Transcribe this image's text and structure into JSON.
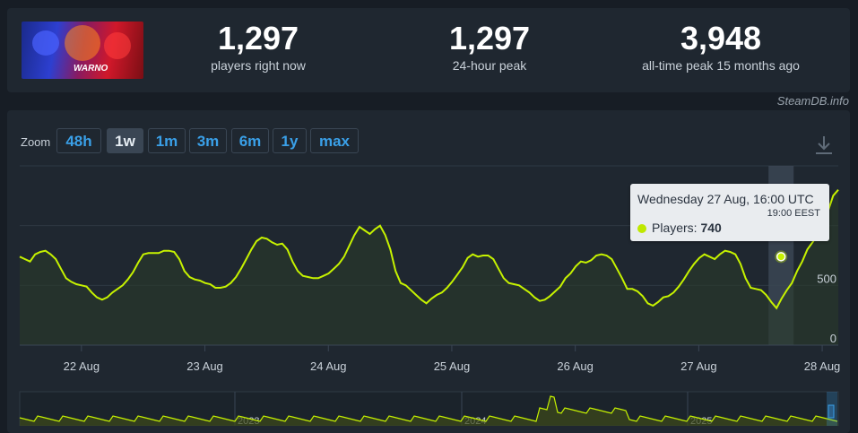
{
  "stats": [
    {
      "value": "1,297",
      "label": "players right now"
    },
    {
      "value": "1,297",
      "label": "24-hour peak"
    },
    {
      "value": "3,948",
      "label": "all-time peak 15 months ago"
    }
  ],
  "game": {
    "logo_text": "WARNO"
  },
  "credit": "SteamDB.info",
  "zoom": {
    "label": "Zoom",
    "options": [
      "48h",
      "1w",
      "1m",
      "3m",
      "6m",
      "1y",
      "max"
    ],
    "selected": "1w"
  },
  "tooltip": {
    "title": "Wednesday 27 Aug, 16:00 UTC",
    "subtitle": "19:00 EEST",
    "series_label": "Players:",
    "value": "740"
  },
  "chart_data": {
    "type": "area",
    "x_tick_labels": [
      "22 Aug",
      "23 Aug",
      "24 Aug",
      "25 Aug",
      "26 Aug",
      "27 Aug",
      "28 Aug"
    ],
    "y_tick_labels": [
      "0",
      "500"
    ],
    "ylim": [
      0,
      1500
    ],
    "grid": true,
    "series": [
      {
        "name": "Players",
        "color": "#c6f200",
        "x_start_day": 21.5,
        "x_step_days": 0.0417,
        "values": [
          740,
          720,
          700,
          760,
          780,
          790,
          760,
          720,
          640,
          560,
          530,
          510,
          500,
          490,
          440,
          400,
          380,
          400,
          440,
          470,
          500,
          550,
          610,
          690,
          760,
          770,
          770,
          770,
          790,
          790,
          780,
          720,
          620,
          570,
          550,
          540,
          520,
          510,
          480,
          480,
          490,
          520,
          570,
          640,
          720,
          800,
          870,
          900,
          890,
          860,
          840,
          850,
          800,
          700,
          620,
          580,
          570,
          560,
          560,
          580,
          600,
          640,
          680,
          740,
          830,
          920,
          990,
          960,
          930,
          970,
          1000,
          920,
          800,
          620,
          520,
          500,
          460,
          420,
          380,
          350,
          390,
          420,
          440,
          480,
          530,
          590,
          650,
          730,
          760,
          740,
          750,
          750,
          720,
          640,
          560,
          520,
          510,
          500,
          470,
          440,
          400,
          370,
          380,
          410,
          450,
          490,
          560,
          600,
          660,
          700,
          690,
          710,
          750,
          760,
          750,
          720,
          640,
          560,
          470,
          470,
          450,
          410,
          350,
          330,
          360,
          400,
          410,
          440,
          490,
          550,
          620,
          680,
          730,
          760,
          740,
          720,
          760,
          790,
          780,
          760,
          680,
          560,
          480,
          470,
          460,
          420,
          360,
          310,
          390,
          460,
          520,
          620,
          700,
          800,
          860,
          920,
          1000,
          1120,
          1250,
          1300
        ]
      }
    ],
    "navigator": {
      "year_labels": [
        "2023",
        "2024",
        "2025"
      ]
    }
  }
}
